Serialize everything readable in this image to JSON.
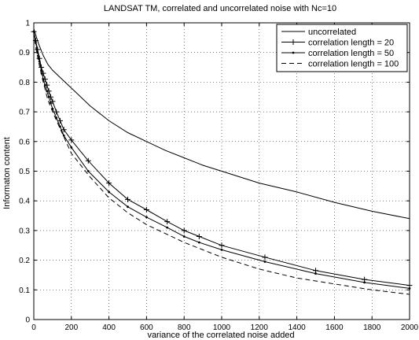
{
  "chart_data": {
    "type": "line",
    "title": "LANDSAT TM, correlated and uncorrelated noise with Nc=10",
    "xlabel": "variance of the correlated noise added",
    "ylabel": "Informaton content",
    "xlim": [
      0,
      2000
    ],
    "ylim": [
      0,
      1
    ],
    "xticks": [
      "0",
      "200",
      "400",
      "600",
      "800",
      "1000",
      "1200",
      "1400",
      "1600",
      "1800",
      "2000"
    ],
    "yticks": [
      "0",
      "0.1",
      "0.2",
      "0.3",
      "0.4",
      "0.5",
      "0.6",
      "0.7",
      "0.8",
      "0.9",
      "1"
    ],
    "grid": true,
    "legend_position": "top-right",
    "series": [
      {
        "name": "uncorrelated",
        "line_style": "solid",
        "marker": "none",
        "x": [
          0,
          10,
          25,
          50,
          75,
          100,
          150,
          200,
          300,
          400,
          500,
          600,
          700,
          800,
          900,
          1000,
          1200,
          1400,
          1600,
          1800,
          2000
        ],
        "y": [
          0.98,
          0.96,
          0.93,
          0.89,
          0.86,
          0.84,
          0.81,
          0.78,
          0.72,
          0.67,
          0.63,
          0.6,
          0.57,
          0.545,
          0.52,
          0.5,
          0.46,
          0.43,
          0.395,
          0.365,
          0.34
        ]
      },
      {
        "name": "correlation length = 20",
        "line_style": "solid",
        "marker": "plus",
        "x": [
          0,
          10,
          20,
          30,
          40,
          50,
          60,
          70,
          80,
          90,
          100,
          120,
          140,
          160,
          200,
          290,
          400,
          500,
          600,
          710,
          800,
          880,
          1000,
          1230,
          1500,
          1760,
          2000
        ],
        "y": [
          0.97,
          0.94,
          0.91,
          0.88,
          0.85,
          0.83,
          0.81,
          0.79,
          0.77,
          0.75,
          0.735,
          0.7,
          0.67,
          0.64,
          0.605,
          0.535,
          0.46,
          0.405,
          0.37,
          0.33,
          0.3,
          0.28,
          0.25,
          0.21,
          0.165,
          0.135,
          0.115
        ]
      },
      {
        "name": "correlation length = 50",
        "line_style": "solid",
        "marker": "dot",
        "x": [
          0,
          10,
          20,
          30,
          40,
          50,
          60,
          70,
          80,
          90,
          100,
          120,
          140,
          160,
          200,
          290,
          400,
          500,
          600,
          710,
          800,
          880,
          1000,
          1230,
          1500,
          1760,
          2000
        ],
        "y": [
          0.97,
          0.935,
          0.9,
          0.87,
          0.84,
          0.81,
          0.79,
          0.77,
          0.75,
          0.73,
          0.71,
          0.68,
          0.65,
          0.62,
          0.58,
          0.5,
          0.43,
          0.38,
          0.345,
          0.31,
          0.28,
          0.26,
          0.235,
          0.195,
          0.155,
          0.125,
          0.105
        ]
      },
      {
        "name": "correlation length = 100",
        "line_style": "dashed",
        "marker": "none",
        "x": [
          0,
          10,
          25,
          50,
          75,
          100,
          150,
          200,
          300,
          400,
          500,
          600,
          700,
          800,
          900,
          1000,
          1200,
          1400,
          1600,
          1800,
          2000
        ],
        "y": [
          0.97,
          0.92,
          0.87,
          0.8,
          0.74,
          0.7,
          0.63,
          0.56,
          0.48,
          0.41,
          0.36,
          0.32,
          0.29,
          0.26,
          0.235,
          0.21,
          0.17,
          0.14,
          0.12,
          0.1,
          0.085
        ]
      }
    ]
  }
}
